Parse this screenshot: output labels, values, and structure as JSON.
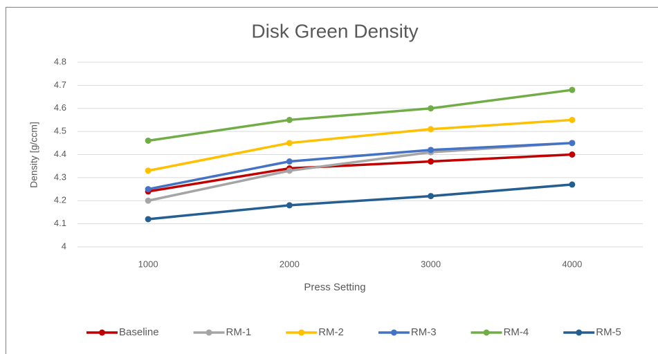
{
  "chart_data": {
    "type": "line",
    "title": "Disk Green Density",
    "x_label": "Press Setting",
    "y_label": "Density [g/ccm]",
    "categories": [
      "1000",
      "2000",
      "3000",
      "4000"
    ],
    "series": [
      {
        "name": "Baseline",
        "color": "#c00000",
        "values": [
          4.24,
          4.34,
          4.37,
          4.4
        ]
      },
      {
        "name": "RM-1",
        "color": "#a5a5a5",
        "values": [
          4.2,
          4.33,
          4.41,
          4.45
        ]
      },
      {
        "name": "RM-2",
        "color": "#ffc000",
        "values": [
          4.33,
          4.45,
          4.51,
          4.55
        ]
      },
      {
        "name": "RM-3",
        "color": "#4472c4",
        "values": [
          4.25,
          4.37,
          4.42,
          4.45
        ]
      },
      {
        "name": "RM-4",
        "color": "#70ad47",
        "values": [
          4.46,
          4.55,
          4.6,
          4.68
        ]
      },
      {
        "name": "RM-5",
        "color": "#255e91",
        "values": [
          4.12,
          4.18,
          4.22,
          4.27
        ]
      }
    ],
    "ylim": [
      4,
      4.8
    ],
    "yticks": [
      4,
      4.1,
      4.2,
      4.3,
      4.4,
      4.5,
      4.6,
      4.7,
      4.8
    ],
    "grid": true,
    "legend": "bottom"
  }
}
